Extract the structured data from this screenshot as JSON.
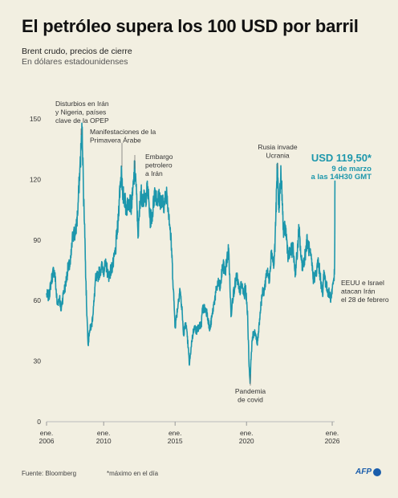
{
  "header": {
    "title": "El petróleo supera los 100 USD por barril",
    "subtitle": "Brent crudo, precios de cierre",
    "units": "En dólares estadounidenses"
  },
  "footer": {
    "source": "Fuente: Bloomberg",
    "footnote": "*máximo en el día",
    "logo_text": "AFP"
  },
  "colors": {
    "line": "#1d97ac",
    "highlight": "#1d97ac",
    "logo": "#1a5dab"
  },
  "chart_data": {
    "type": "line",
    "title": "El petróleo supera los 100 USD por barril",
    "ylim": [
      0,
      150
    ],
    "yticks": [
      0,
      30,
      60,
      90,
      120,
      150
    ],
    "xlim": [
      "2006-01",
      "2026-03"
    ],
    "xticks": [
      {
        "line1": "ene.",
        "line2": "2006",
        "date": "2006-01"
      },
      {
        "line1": "ene.",
        "line2": "2010",
        "date": "2010-01"
      },
      {
        "line1": "ene.",
        "line2": "2015",
        "date": "2015-01"
      },
      {
        "line1": "ene.",
        "line2": "2020",
        "date": "2020-01"
      },
      {
        "line1": "ene.",
        "line2": "2026",
        "date": "2026-01"
      }
    ],
    "grid": false,
    "series": [
      {
        "points": [
          [
            "2006-01",
            63
          ],
          [
            "2006-03",
            62
          ],
          [
            "2006-05",
            70
          ],
          [
            "2006-07",
            75
          ],
          [
            "2006-08",
            73
          ],
          [
            "2006-10",
            58
          ],
          [
            "2006-12",
            62
          ],
          [
            "2007-01",
            55
          ],
          [
            "2007-03",
            63
          ],
          [
            "2007-05",
            68
          ],
          [
            "2007-07",
            76
          ],
          [
            "2007-09",
            78
          ],
          [
            "2007-11",
            92
          ],
          [
            "2007-12",
            94
          ],
          [
            "2008-01",
            92
          ],
          [
            "2008-03",
            102
          ],
          [
            "2008-05",
            125
          ],
          [
            "2008-07",
            146
          ],
          [
            "2008-08",
            114
          ],
          [
            "2008-09",
            98
          ],
          [
            "2008-10",
            70
          ],
          [
            "2008-11",
            52
          ],
          [
            "2008-12",
            38
          ],
          [
            "2009-01",
            45
          ],
          [
            "2009-03",
            48
          ],
          [
            "2009-05",
            60
          ],
          [
            "2009-06",
            70
          ],
          [
            "2009-08",
            72
          ],
          [
            "2009-10",
            75
          ],
          [
            "2009-12",
            77
          ],
          [
            "2010-01",
            75
          ],
          [
            "2010-03",
            78
          ],
          [
            "2010-05",
            72
          ],
          [
            "2010-07",
            75
          ],
          [
            "2010-09",
            78
          ],
          [
            "2010-11",
            85
          ],
          [
            "2010-12",
            93
          ],
          [
            "2011-01",
            97
          ],
          [
            "2011-02",
            110
          ],
          [
            "2011-04",
            126
          ],
          [
            "2011-05",
            110
          ],
          [
            "2011-06",
            113
          ],
          [
            "2011-08",
            105
          ],
          [
            "2011-10",
            110
          ],
          [
            "2011-12",
            107
          ],
          [
            "2012-01",
            110
          ],
          [
            "2012-03",
            125
          ],
          [
            "2012-04",
            120
          ],
          [
            "2012-06",
            92
          ],
          [
            "2012-08",
            114
          ],
          [
            "2012-10",
            110
          ],
          [
            "2012-12",
            110
          ],
          [
            "2013-02",
            116
          ],
          [
            "2013-04",
            100
          ],
          [
            "2013-06",
            103
          ],
          [
            "2013-08",
            115
          ],
          [
            "2013-10",
            110
          ],
          [
            "2013-12",
            111
          ],
          [
            "2014-02",
            108
          ],
          [
            "2014-04",
            108
          ],
          [
            "2014-06",
            114
          ],
          [
            "2014-08",
            102
          ],
          [
            "2014-10",
            86
          ],
          [
            "2014-12",
            60
          ],
          [
            "2015-01",
            47
          ],
          [
            "2015-03",
            56
          ],
          [
            "2015-05",
            66
          ],
          [
            "2015-07",
            54
          ],
          [
            "2015-08",
            43
          ],
          [
            "2015-10",
            49
          ],
          [
            "2015-12",
            37
          ],
          [
            "2016-01",
            28
          ],
          [
            "2016-03",
            40
          ],
          [
            "2016-05",
            47
          ],
          [
            "2016-07",
            45
          ],
          [
            "2016-09",
            47
          ],
          [
            "2016-11",
            48
          ],
          [
            "2016-12",
            56
          ],
          [
            "2017-02",
            56
          ],
          [
            "2017-04",
            54
          ],
          [
            "2017-06",
            45
          ],
          [
            "2017-08",
            52
          ],
          [
            "2017-10",
            60
          ],
          [
            "2017-12",
            66
          ],
          [
            "2018-01",
            69
          ],
          [
            "2018-03",
            66
          ],
          [
            "2018-05",
            78
          ],
          [
            "2018-07",
            74
          ],
          [
            "2018-10",
            86
          ],
          [
            "2018-12",
            52
          ],
          [
            "2019-01",
            60
          ],
          [
            "2019-03",
            67
          ],
          [
            "2019-05",
            72
          ],
          [
            "2019-07",
            64
          ],
          [
            "2019-09",
            68
          ],
          [
            "2019-11",
            62
          ],
          [
            "2019-12",
            67
          ],
          [
            "2020-01",
            60
          ],
          [
            "2020-02",
            52
          ],
          [
            "2020-03",
            30
          ],
          [
            "2020-04",
            19
          ],
          [
            "2020-05",
            34
          ],
          [
            "2020-06",
            42
          ],
          [
            "2020-08",
            45
          ],
          [
            "2020-10",
            38
          ],
          [
            "2020-12",
            51
          ],
          [
            "2021-02",
            63
          ],
          [
            "2021-04",
            65
          ],
          [
            "2021-06",
            75
          ],
          [
            "2021-08",
            70
          ],
          [
            "2021-10",
            85
          ],
          [
            "2021-12",
            77
          ],
          [
            "2022-01",
            90
          ],
          [
            "2022-03",
            128
          ],
          [
            "2022-04",
            105
          ],
          [
            "2022-06",
            123
          ],
          [
            "2022-08",
            95
          ],
          [
            "2022-10",
            95
          ],
          [
            "2022-12",
            82
          ],
          [
            "2023-02",
            84
          ],
          [
            "2023-04",
            86
          ],
          [
            "2023-06",
            74
          ],
          [
            "2023-08",
            86
          ],
          [
            "2023-09",
            96
          ],
          [
            "2023-11",
            80
          ],
          [
            "2023-12",
            77
          ],
          [
            "2024-02",
            82
          ],
          [
            "2024-04",
            90
          ],
          [
            "2024-06",
            84
          ],
          [
            "2024-08",
            78
          ],
          [
            "2024-09",
            71
          ],
          [
            "2024-11",
            73
          ],
          [
            "2024-12",
            74
          ],
          [
            "2025-01",
            80
          ],
          [
            "2025-03",
            72
          ],
          [
            "2025-05",
            62
          ],
          [
            "2025-06",
            75
          ],
          [
            "2025-08",
            67
          ],
          [
            "2025-10",
            64
          ],
          [
            "2025-12",
            61
          ],
          [
            "2026-01",
            66
          ],
          [
            "2026-02",
            70
          ],
          [
            "2026-02-28",
            73
          ],
          [
            "2026-03-05",
            88
          ],
          [
            "2026-03-09",
            119.5
          ]
        ]
      }
    ],
    "annotations": [
      {
        "id": "iran-nigeria",
        "lines": [
          "Disturbios en Irán",
          "y Nigeria, países",
          "clave de la OPEP"
        ]
      },
      {
        "id": "arab-spring",
        "lines": [
          "Manifestaciones de la",
          "Primavera Árabe"
        ]
      },
      {
        "id": "iran-embargo",
        "lines": [
          "Embargo",
          "petrolero",
          "a Irán"
        ]
      },
      {
        "id": "ukraine",
        "lines": [
          "Rusia invade",
          "Ucrania"
        ]
      },
      {
        "id": "covid",
        "lines": [
          "Pandemia",
          "de covid"
        ]
      },
      {
        "id": "us-israel",
        "lines": [
          "EEUU e Israel",
          "atacan Irán",
          "el 28 de febrero"
        ]
      }
    ],
    "highlight": {
      "value_label": "USD 119,50*",
      "line2": "9 de marzo",
      "line3": "a las 14H30 GMT"
    }
  }
}
